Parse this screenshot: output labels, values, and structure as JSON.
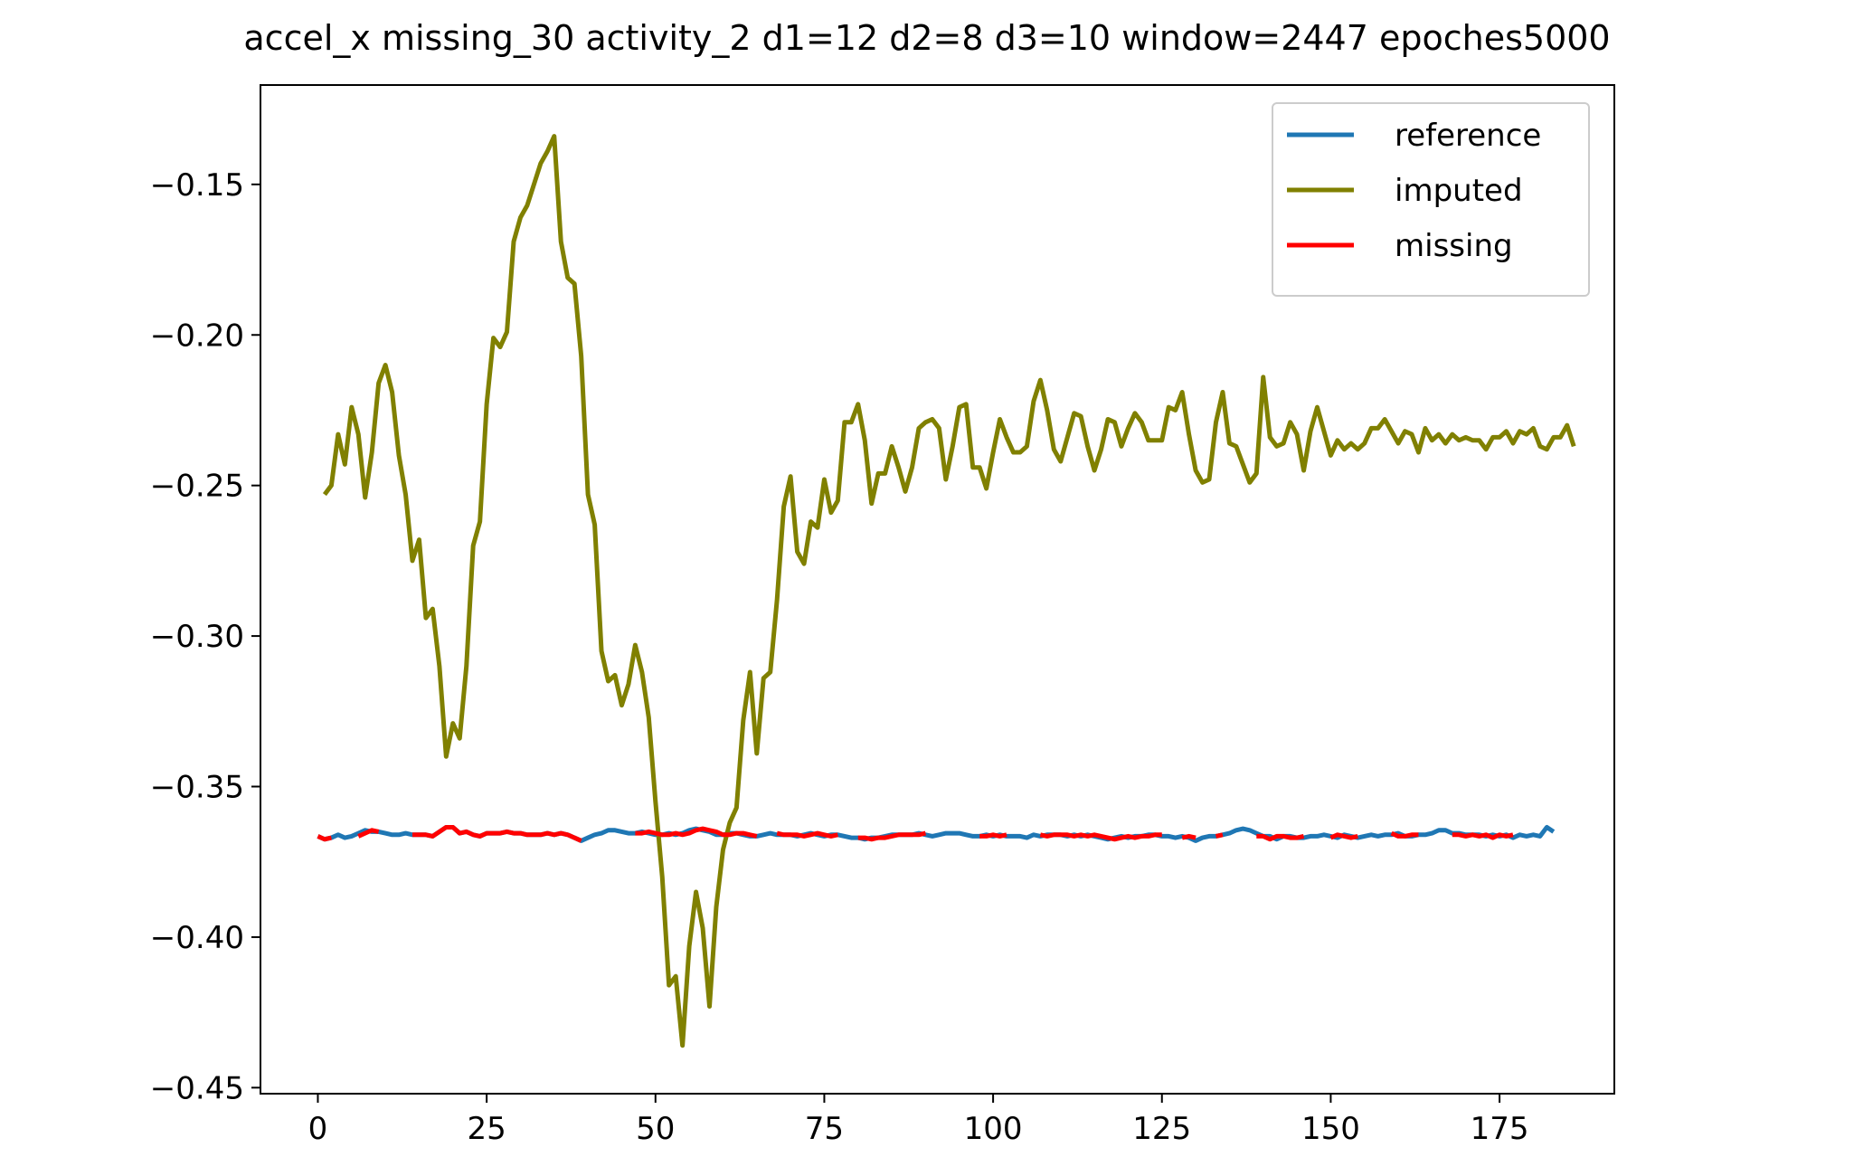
{
  "chart_data": {
    "type": "line",
    "title": "accel_x missing_30 activity_2 d1=12 d2=8 d3=10 window=2447 epoches5000",
    "xlabel": "",
    "ylabel": "",
    "xlim": [
      -8.5,
      192
    ],
    "ylim": [
      -0.452,
      -0.117
    ],
    "x_ticks": [
      0,
      25,
      50,
      75,
      100,
      125,
      150,
      175
    ],
    "y_ticks": [
      -0.15,
      -0.2,
      -0.25,
      -0.3,
      -0.35,
      -0.4,
      -0.45
    ],
    "x_tick_labels": [
      "0",
      "25",
      "50",
      "75",
      "100",
      "125",
      "150",
      "175"
    ],
    "y_tick_labels": [
      "−0.15",
      "−0.20",
      "−0.25",
      "−0.30",
      "−0.35",
      "−0.40",
      "−0.45"
    ],
    "grid": false,
    "legend_position": "top-right",
    "colors": {
      "reference": "#1f77b4",
      "imputed": "#808000",
      "missing": "#ff0000"
    },
    "series": [
      {
        "name": "reference",
        "x_start": 0,
        "values": [
          -0.3665,
          -0.3675,
          -0.367,
          -0.366,
          -0.367,
          -0.3665,
          -0.3655,
          -0.3645,
          -0.365,
          -0.365,
          -0.3655,
          -0.366,
          -0.366,
          -0.3655,
          -0.366,
          -0.366,
          -0.366,
          -0.3665,
          -0.365,
          -0.3635,
          -0.3635,
          -0.3655,
          -0.365,
          -0.366,
          -0.3665,
          -0.3655,
          -0.3655,
          -0.3655,
          -0.365,
          -0.3655,
          -0.3655,
          -0.366,
          -0.366,
          -0.366,
          -0.3655,
          -0.366,
          -0.3655,
          -0.366,
          -0.367,
          -0.368,
          -0.367,
          -0.366,
          -0.3655,
          -0.3645,
          -0.3645,
          -0.365,
          -0.3655,
          -0.3655,
          -0.365,
          -0.3655,
          -0.366,
          -0.366,
          -0.3655,
          -0.366,
          -0.3655,
          -0.3645,
          -0.364,
          -0.3645,
          -0.365,
          -0.366,
          -0.366,
          -0.3655,
          -0.3655,
          -0.366,
          -0.3665,
          -0.3665,
          -0.366,
          -0.3655,
          -0.366,
          -0.366,
          -0.366,
          -0.3665,
          -0.366,
          -0.3655,
          -0.366,
          -0.3665,
          -0.366,
          -0.366,
          -0.3665,
          -0.367,
          -0.367,
          -0.3675,
          -0.367,
          -0.367,
          -0.3665,
          -0.366,
          -0.366,
          -0.366,
          -0.366,
          -0.3655,
          -0.366,
          -0.3665,
          -0.366,
          -0.3655,
          -0.3655,
          -0.3655,
          -0.366,
          -0.3665,
          -0.3665,
          -0.366,
          -0.3665,
          -0.366,
          -0.3665,
          -0.3665,
          -0.3665,
          -0.367,
          -0.366,
          -0.3665,
          -0.366,
          -0.366,
          -0.366,
          -0.3665,
          -0.366,
          -0.3665,
          -0.366,
          -0.3665,
          -0.367,
          -0.3675,
          -0.367,
          -0.3665,
          -0.367,
          -0.3665,
          -0.3665,
          -0.366,
          -0.366,
          -0.3665,
          -0.3665,
          -0.367,
          -0.3665,
          -0.367,
          -0.368,
          -0.367,
          -0.3665,
          -0.3665,
          -0.366,
          -0.3655,
          -0.3645,
          -0.364,
          -0.3645,
          -0.3655,
          -0.3665,
          -0.3665,
          -0.3675,
          -0.3665,
          -0.3665,
          -0.367,
          -0.367,
          -0.3665,
          -0.3665,
          -0.366,
          -0.3665,
          -0.367,
          -0.366,
          -0.3665,
          -0.367,
          -0.3665,
          -0.366,
          -0.3665,
          -0.366,
          -0.366,
          -0.3655,
          -0.3665,
          -0.3665,
          -0.366,
          -0.366,
          -0.3655,
          -0.3645,
          -0.3645,
          -0.3655,
          -0.3655,
          -0.366,
          -0.366,
          -0.366,
          -0.3665,
          -0.366,
          -0.3665,
          -0.366,
          -0.367,
          -0.366,
          -0.3665,
          -0.366,
          -0.3665,
          -0.3635,
          -0.365
        ]
      },
      {
        "name": "imputed",
        "x_start": 1,
        "values": [
          -0.253,
          -0.25,
          -0.233,
          -0.243,
          -0.224,
          -0.233,
          -0.254,
          -0.239,
          -0.216,
          -0.21,
          -0.219,
          -0.24,
          -0.253,
          -0.275,
          -0.268,
          -0.294,
          -0.291,
          -0.31,
          -0.34,
          -0.329,
          -0.334,
          -0.31,
          -0.27,
          -0.262,
          -0.223,
          -0.201,
          -0.204,
          -0.199,
          -0.169,
          -0.161,
          -0.157,
          -0.15,
          -0.143,
          -0.139,
          -0.134,
          -0.169,
          -0.181,
          -0.183,
          -0.207,
          -0.253,
          -0.263,
          -0.305,
          -0.315,
          -0.313,
          -0.323,
          -0.316,
          -0.303,
          -0.312,
          -0.327,
          -0.355,
          -0.38,
          -0.416,
          -0.413,
          -0.436,
          -0.403,
          -0.385,
          -0.397,
          -0.423,
          -0.39,
          -0.371,
          -0.362,
          -0.357,
          -0.328,
          -0.312,
          -0.339,
          -0.314,
          -0.312,
          -0.288,
          -0.257,
          -0.247,
          -0.272,
          -0.276,
          -0.262,
          -0.264,
          -0.248,
          -0.259,
          -0.255,
          -0.229,
          -0.229,
          -0.223,
          -0.235,
          -0.256,
          -0.246,
          -0.246,
          -0.237,
          -0.244,
          -0.252,
          -0.244,
          -0.231,
          -0.229,
          -0.228,
          -0.231,
          -0.248,
          -0.237,
          -0.224,
          -0.223,
          -0.244,
          -0.244,
          -0.251,
          -0.239,
          -0.228,
          -0.234,
          -0.239,
          -0.239,
          -0.237,
          -0.222,
          -0.215,
          -0.225,
          -0.238,
          -0.242,
          -0.234,
          -0.226,
          -0.227,
          -0.237,
          -0.245,
          -0.238,
          -0.228,
          -0.229,
          -0.237,
          -0.231,
          -0.226,
          -0.229,
          -0.235,
          -0.235,
          -0.235,
          -0.224,
          -0.225,
          -0.219,
          -0.233,
          -0.245,
          -0.249,
          -0.248,
          -0.229,
          -0.219,
          -0.236,
          -0.237,
          -0.243,
          -0.249,
          -0.246,
          -0.214,
          -0.234,
          -0.237,
          -0.236,
          -0.229,
          -0.233,
          -0.245,
          -0.232,
          -0.224,
          -0.232,
          -0.24,
          -0.235,
          -0.238,
          -0.236,
          -0.238,
          -0.236,
          -0.231,
          -0.231,
          -0.228,
          -0.232,
          -0.236,
          -0.232,
          -0.233,
          -0.239,
          -0.231,
          -0.235,
          -0.233,
          -0.236,
          -0.233,
          -0.235,
          -0.234,
          -0.235,
          -0.235,
          -0.238,
          -0.234,
          -0.234,
          -0.232,
          -0.236,
          -0.232,
          -0.233,
          -0.231,
          -0.237,
          -0.238,
          -0.234,
          -0.234,
          -0.23,
          -0.237
        ]
      },
      {
        "name": "missing",
        "segments": [
          {
            "x_start": 0,
            "values": [
              -0.3665,
              -0.3675,
              -0.367
            ]
          },
          {
            "x_start": 6,
            "values": [
              -0.3665,
              -0.3655,
              -0.3645,
              -0.365
            ]
          },
          {
            "x_start": 14,
            "values": [
              -0.366,
              -0.366,
              -0.366,
              -0.3665,
              -0.365,
              -0.3635,
              -0.3635,
              -0.3655,
              -0.365,
              -0.366,
              -0.3665,
              -0.3655,
              -0.3655,
              -0.3655,
              -0.365,
              -0.3655,
              -0.3655,
              -0.366,
              -0.366,
              -0.366,
              -0.3655,
              -0.366,
              -0.3655,
              -0.366,
              -0.367,
              -0.368
            ]
          },
          {
            "x_start": 47,
            "values": [
              -0.3655,
              -0.3655,
              -0.365,
              -0.3655,
              -0.366,
              -0.366,
              -0.3655,
              -0.366,
              -0.3655,
              -0.3645,
              -0.364,
              -0.3645,
              -0.365,
              -0.366,
              -0.366,
              -0.3655,
              -0.3655,
              -0.366,
              -0.3665
            ]
          },
          {
            "x_start": 68,
            "values": [
              -0.3655,
              -0.366,
              -0.366,
              -0.366,
              -0.3665,
              -0.366,
              -0.3655,
              -0.366,
              -0.3665,
              -0.366
            ]
          },
          {
            "x_start": 80,
            "values": [
              -0.367,
              -0.367,
              -0.3675,
              -0.367,
              -0.367,
              -0.3665,
              -0.366,
              -0.366,
              -0.366,
              -0.366,
              -0.3655
            ]
          },
          {
            "x_start": 98,
            "values": [
              -0.3665,
              -0.3665,
              -0.366,
              -0.3665,
              -0.366
            ]
          },
          {
            "x_start": 107,
            "values": [
              -0.366,
              -0.3665,
              -0.366,
              -0.366,
              -0.366,
              -0.3665,
              -0.366,
              -0.3665,
              -0.366,
              -0.3665,
              -0.367,
              -0.3675,
              -0.367,
              -0.3665,
              -0.367,
              -0.3665,
              -0.3665,
              -0.366,
              -0.366
            ]
          },
          {
            "x_start": 128,
            "values": [
              -0.367,
              -0.3665,
              -0.367
            ]
          },
          {
            "x_start": 133,
            "values": [
              -0.3665,
              -0.366
            ]
          },
          {
            "x_start": 139,
            "values": [
              -0.3665,
              -0.3665,
              -0.3675,
              -0.3665,
              -0.3665,
              -0.367,
              -0.367,
              -0.3665
            ]
          },
          {
            "x_start": 150,
            "values": [
              -0.367,
              -0.366,
              -0.3665,
              -0.367,
              -0.3665
            ]
          },
          {
            "x_start": 159,
            "values": [
              -0.3655,
              -0.3665,
              -0.3665,
              -0.366,
              -0.366
            ]
          },
          {
            "x_start": 168,
            "values": [
              -0.366,
              -0.366,
              -0.3665,
              -0.366,
              -0.3665,
              -0.366,
              -0.367,
              -0.366,
              -0.3665,
              -0.366
            ]
          }
        ]
      }
    ],
    "legend": [
      {
        "label": "reference",
        "series": "reference"
      },
      {
        "label": "imputed",
        "series": "imputed"
      },
      {
        "label": "missing",
        "series": "missing"
      }
    ]
  }
}
